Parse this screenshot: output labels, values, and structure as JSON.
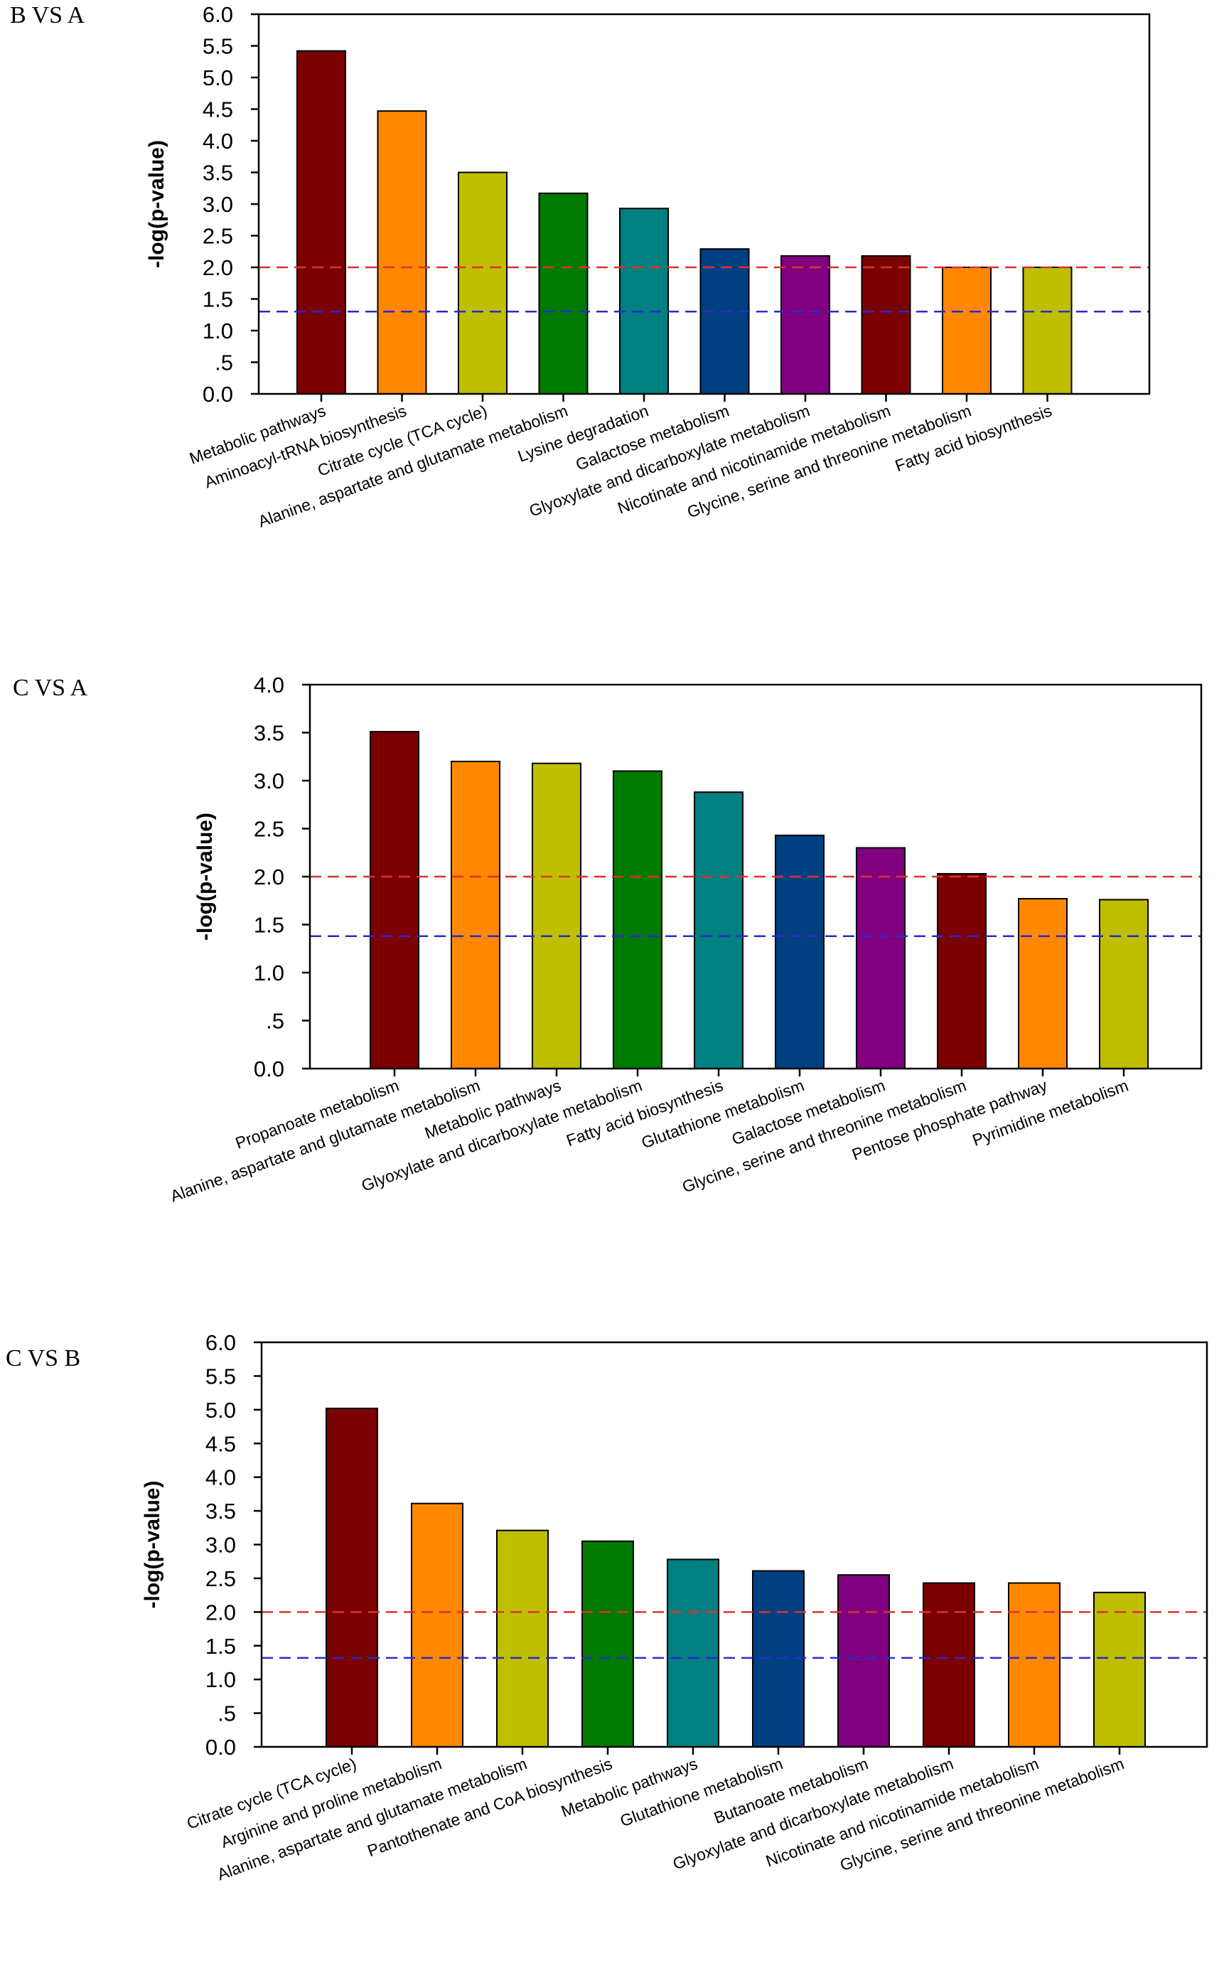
{
  "colors": {
    "bar_cycle": [
      "#7b0000",
      "#ff8800",
      "#bfbf00",
      "#007a00",
      "#008080",
      "#003f80",
      "#800080"
    ],
    "red_line": "#e03030",
    "blue_line": "#2a2ad0",
    "axis": "#000000"
  },
  "chart_data": [
    {
      "type": "bar",
      "panel_label": "B VS A",
      "ylabel": "-log(p-value)",
      "xlabel": "",
      "ylim": [
        0,
        6
      ],
      "yticks": [
        0,
        0.5,
        1,
        1.5,
        2,
        2.5,
        3,
        3.5,
        4,
        4.5,
        5,
        5.5,
        6
      ],
      "ytick_labels": [
        "0.0",
        ".5",
        "1.0",
        "1.5",
        "2.0",
        "2.5",
        "3.0",
        "3.5",
        "4.0",
        "4.5",
        "5.0",
        "5.5",
        "6.0"
      ],
      "categories": [
        "Metabolic pathways",
        "Aminoacyl-tRNA biosynthesis",
        "Citrate cycle (TCA cycle)",
        "Alanine, aspartate and glutamate metabolism",
        "Lysine degradation",
        "Galactose metabolism",
        "Glyoxylate and dicarboxylate metabolism",
        "Nicotinate and nicotinamide metabolism",
        "Glycine, serine and threonine metabolism",
        "Fatty acid biosynthesis"
      ],
      "values": [
        5.42,
        4.47,
        3.5,
        3.17,
        2.93,
        2.29,
        2.18,
        2.18,
        2.0,
        2.0
      ],
      "thresholds": [
        {
          "value": 2.0,
          "color": "red",
          "style": "dashed"
        },
        {
          "value": 1.3,
          "color": "blue",
          "style": "dashed"
        }
      ]
    },
    {
      "type": "bar",
      "panel_label": "C VS A",
      "ylabel": "-log(p-value)",
      "xlabel": "",
      "ylim": [
        0,
        4
      ],
      "yticks": [
        0,
        0.5,
        1,
        1.5,
        2,
        2.5,
        3,
        3.5,
        4
      ],
      "ytick_labels": [
        "0.0",
        ".5",
        "1.0",
        "1.5",
        "2.0",
        "2.5",
        "3.0",
        "3.5",
        "4.0"
      ],
      "categories": [
        "Propanoate metabolism",
        "Alanine, aspartate and glutamate metabolism",
        "Metabolic pathways",
        "Glyoxylate and dicarboxylate metabolism",
        "Fatty acid biosynthesis",
        "Glutathione metabolism",
        "Galactose metabolism",
        "Glycine, serine and threonine metabolism",
        "Pentose phosphate pathway",
        "Pyrimidine metabolism"
      ],
      "values": [
        3.51,
        3.2,
        3.18,
        3.1,
        2.88,
        2.43,
        2.3,
        2.03,
        1.77,
        1.76
      ],
      "thresholds": [
        {
          "value": 2.0,
          "color": "red",
          "style": "dashed"
        },
        {
          "value": 1.38,
          "color": "blue",
          "style": "dashed"
        }
      ]
    },
    {
      "type": "bar",
      "panel_label": "C VS B",
      "ylabel": "-log(p-value)",
      "xlabel": "",
      "ylim": [
        0,
        6
      ],
      "yticks": [
        0,
        0.5,
        1,
        1.5,
        2,
        2.5,
        3,
        3.5,
        4,
        4.5,
        5,
        5.5,
        6
      ],
      "ytick_labels": [
        "0.0",
        ".5",
        "1.0",
        "1.5",
        "2.0",
        "2.5",
        "3.0",
        "3.5",
        "4.0",
        "4.5",
        "5.0",
        "5.5",
        "6.0"
      ],
      "categories": [
        "Citrate cycle (TCA cycle)",
        "Arginine and proline metabolism",
        "Alanine, aspartate and glutamate metabolism",
        "Pantothenate and CoA biosynthesis",
        "Metabolic pathways",
        "Glutathione metabolism",
        "Butanoate metabolism",
        "Glyoxylate and dicarboxylate metabolism",
        "Nicotinate and nicotinamide metabolism",
        "Glycine, serine and threonine metabolism"
      ],
      "values": [
        5.02,
        3.61,
        3.21,
        3.05,
        2.78,
        2.61,
        2.55,
        2.43,
        2.43,
        2.29
      ],
      "thresholds": [
        {
          "value": 2.0,
          "color": "red",
          "style": "dashed"
        },
        {
          "value": 1.32,
          "color": "blue",
          "style": "dashed"
        }
      ]
    }
  ]
}
